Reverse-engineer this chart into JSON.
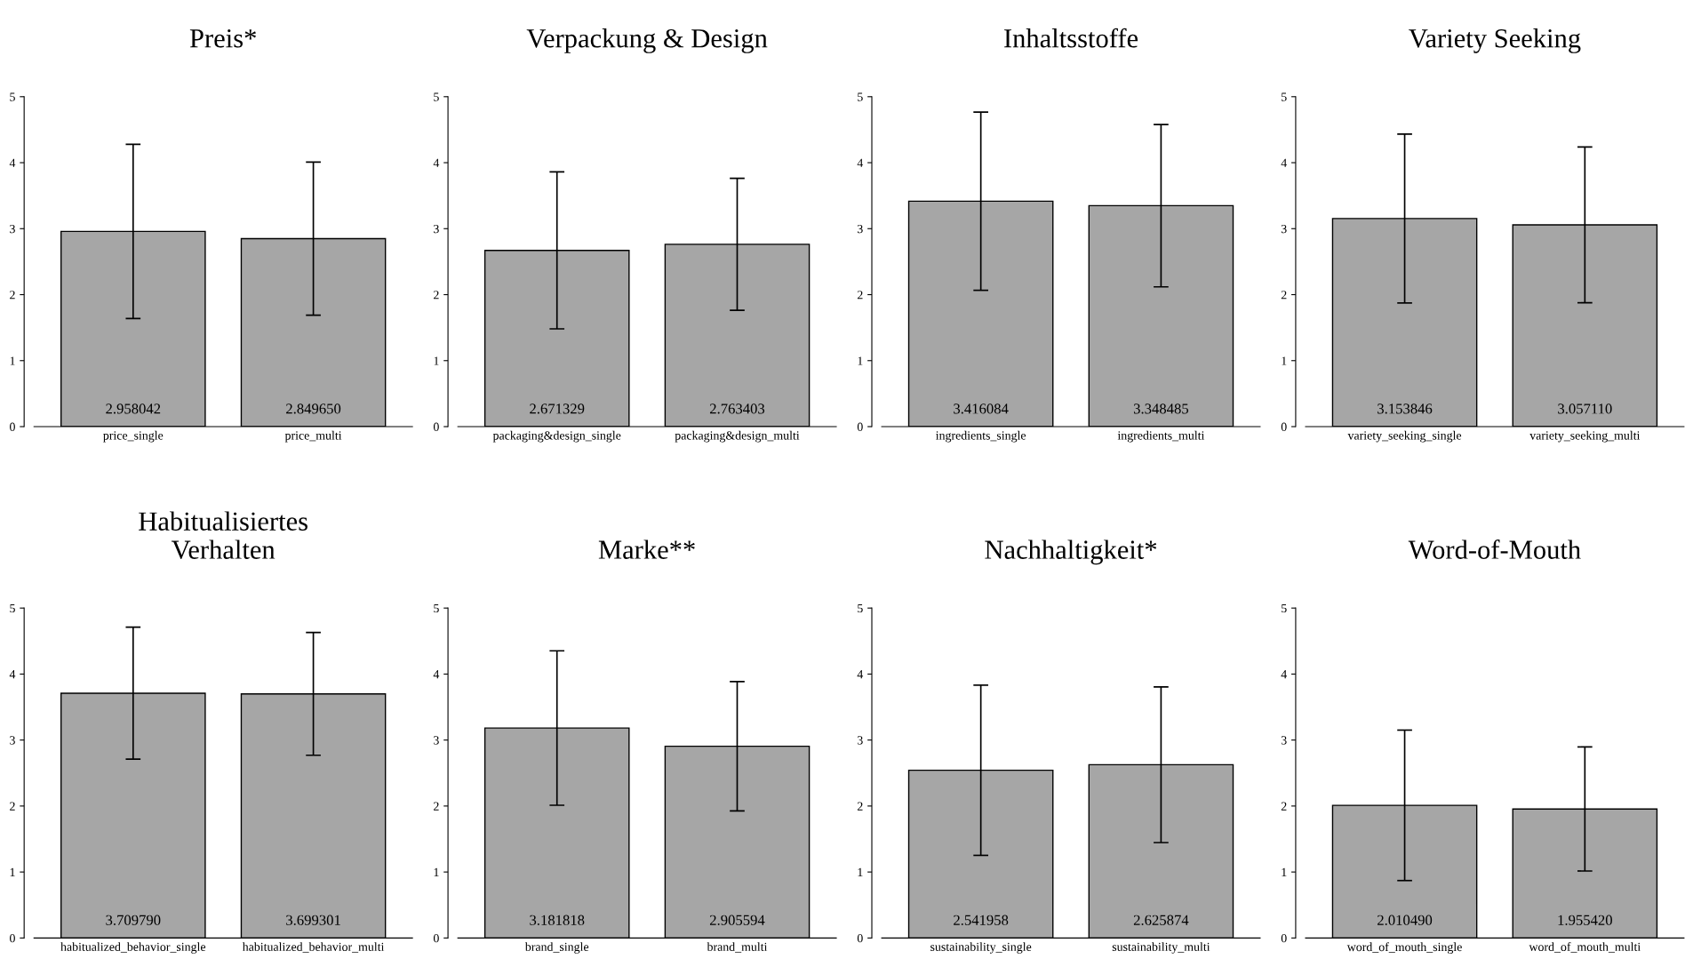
{
  "chart_data": [
    {
      "type": "bar",
      "title": "Preis*",
      "categories": [
        "price_single",
        "price_multi"
      ],
      "values": [
        2.958042,
        2.84965
      ],
      "value_labels": [
        "2.958042",
        "2.849650"
      ],
      "errors": [
        1.32,
        1.16
      ],
      "color": "#a6a6a6",
      "ylim": [
        0,
        5
      ],
      "yticks": [
        0,
        1,
        2,
        3,
        4,
        5
      ]
    },
    {
      "type": "bar",
      "title": "Verpackung & Design",
      "categories": [
        "packaging&design_single",
        "packaging&design_multi"
      ],
      "values": [
        2.671329,
        2.763403
      ],
      "value_labels": [
        "2.671329",
        "2.763403"
      ],
      "errors": [
        1.19,
        1.0
      ],
      "color": "#a6a6a6",
      "ylim": [
        0,
        5
      ],
      "yticks": [
        0,
        1,
        2,
        3,
        4,
        5
      ]
    },
    {
      "type": "bar",
      "title": "Inhaltsstoffe",
      "categories": [
        "ingredients_single",
        "ingredients_multi"
      ],
      "values": [
        3.416084,
        3.348485
      ],
      "value_labels": [
        "3.416084",
        "3.348485"
      ],
      "errors": [
        1.35,
        1.23
      ],
      "color": "#a6a6a6",
      "ylim": [
        0,
        5
      ],
      "yticks": [
        0,
        1,
        2,
        3,
        4,
        5
      ]
    },
    {
      "type": "bar",
      "title": "Variety Seeking",
      "categories": [
        "variety_seeking_single",
        "variety_seeking_multi"
      ],
      "values": [
        3.153846,
        3.05711
      ],
      "value_labels": [
        "3.153846",
        "3.057110"
      ],
      "errors": [
        1.28,
        1.18
      ],
      "color": "#a6a6a6",
      "ylim": [
        0,
        5
      ],
      "yticks": [
        0,
        1,
        2,
        3,
        4,
        5
      ]
    },
    {
      "type": "bar",
      "title": "Habitualisiertes\nVerhalten",
      "categories": [
        "habitualized_behavior_single",
        "habitualized_behavior_multi"
      ],
      "values": [
        3.70979,
        3.699301
      ],
      "value_labels": [
        "3.709790",
        "3.699301"
      ],
      "errors": [
        1.0,
        0.93
      ],
      "color": "#a6a6a6",
      "ylim": [
        0,
        5
      ],
      "yticks": [
        0,
        1,
        2,
        3,
        4,
        5
      ]
    },
    {
      "type": "bar",
      "title": "Marke**",
      "categories": [
        "brand_single",
        "brand_multi"
      ],
      "values": [
        3.181818,
        2.905594
      ],
      "value_labels": [
        "3.181818",
        "2.905594"
      ],
      "errors": [
        1.17,
        0.98
      ],
      "color": "#a6a6a6",
      "ylim": [
        0,
        5
      ],
      "yticks": [
        0,
        1,
        2,
        3,
        4,
        5
      ]
    },
    {
      "type": "bar",
      "title": "Nachhaltigkeit*",
      "categories": [
        "sustainability_single",
        "sustainability_multi"
      ],
      "values": [
        2.541958,
        2.625874
      ],
      "value_labels": [
        "2.541958",
        "2.625874"
      ],
      "errors": [
        1.29,
        1.18
      ],
      "color": "#a6a6a6",
      "ylim": [
        0,
        5
      ],
      "yticks": [
        0,
        1,
        2,
        3,
        4,
        5
      ]
    },
    {
      "type": "bar",
      "title": "Word-of-Mouth",
      "categories": [
        "word_of_mouth_single",
        "word_of_mouth_multi"
      ],
      "values": [
        2.01049,
        1.95542
      ],
      "value_labels": [
        "2.010490",
        "1.955420"
      ],
      "errors": [
        1.14,
        0.94
      ],
      "color": "#a6a6a6",
      "ylim": [
        0,
        5
      ],
      "yticks": [
        0,
        1,
        2,
        3,
        4,
        5
      ]
    }
  ]
}
